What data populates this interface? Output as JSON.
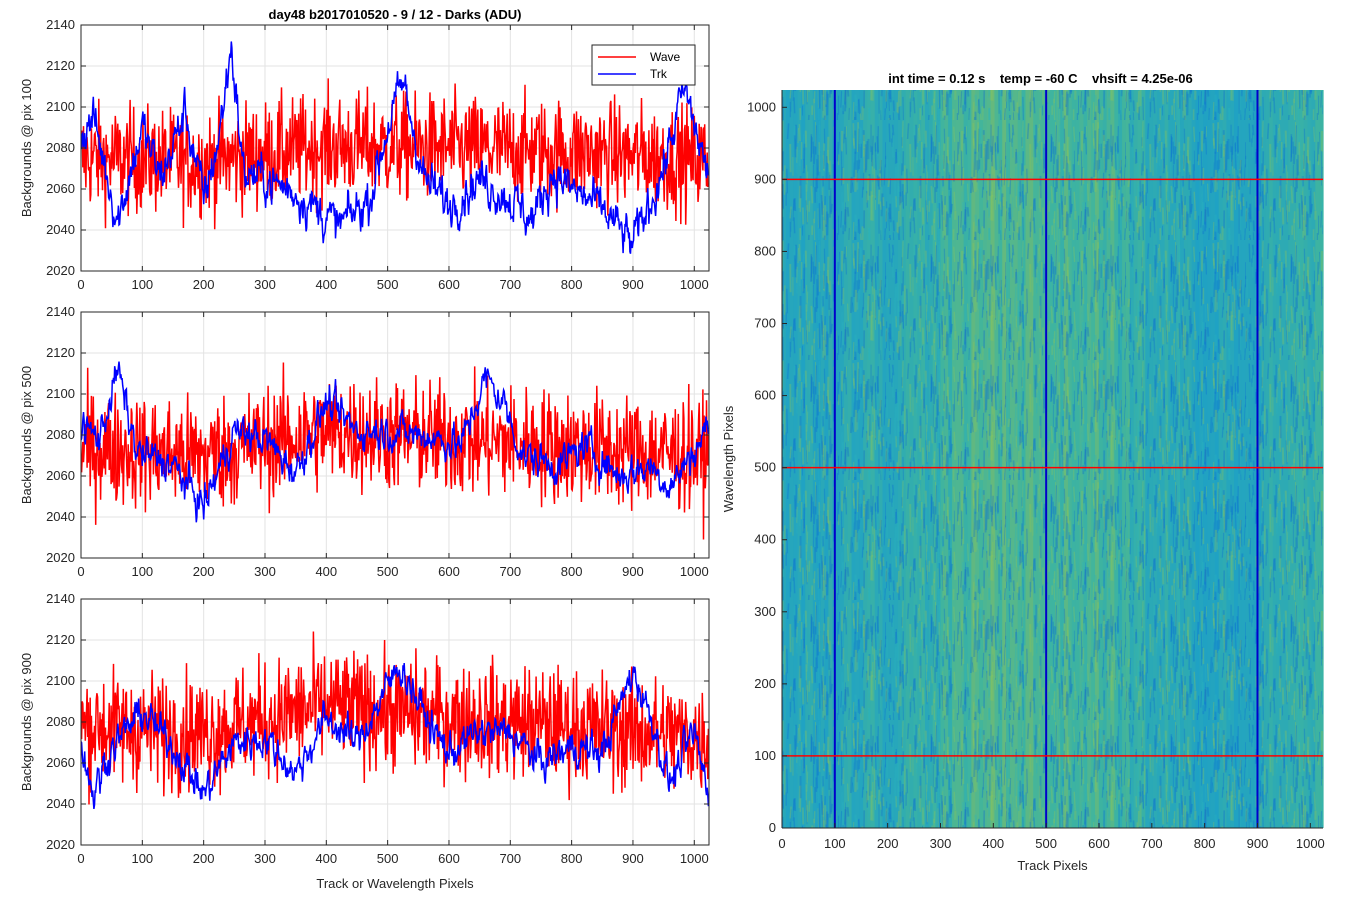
{
  "figure": {
    "title": "day48 b2017010520 - 9 / 12 - Darks (ADU)"
  },
  "chart_data": [
    {
      "type": "line",
      "ylabel": "Backgrounds @ pix 100",
      "xlabel": "",
      "xlim": [
        0,
        1024
      ],
      "ylim": [
        2020,
        2140
      ],
      "xticks": [
        0,
        100,
        200,
        300,
        400,
        500,
        600,
        700,
        800,
        900,
        1000
      ],
      "yticks": [
        2020,
        2040,
        2060,
        2080,
        2100,
        2120,
        2140
      ],
      "grid": true,
      "legend": {
        "placement": "top-right",
        "entries": [
          "Wave",
          "Trk"
        ]
      },
      "series": [
        {
          "name": "Wave",
          "color": "#ff0000",
          "mean": 2078,
          "noise": 13,
          "min": 2022,
          "max": 2137,
          "x_count": 1024,
          "anchors": [
            [
              0,
              2075
            ],
            [
              200,
              2073
            ],
            [
              400,
              2081
            ],
            [
              600,
              2080
            ],
            [
              800,
              2078
            ],
            [
              1023,
              2074
            ]
          ]
        },
        {
          "name": "Trk",
          "color": "#0000ff",
          "mean": 2072,
          "noise": 5,
          "min": 2023,
          "max": 2135,
          "x_count": 1024,
          "anchors": [
            [
              0,
              2085
            ],
            [
              20,
              2095
            ],
            [
              60,
              2045
            ],
            [
              100,
              2090
            ],
            [
              130,
              2065
            ],
            [
              170,
              2098
            ],
            [
              200,
              2055
            ],
            [
              225,
              2085
            ],
            [
              245,
              2130
            ],
            [
              265,
              2068
            ],
            [
              300,
              2065
            ],
            [
              350,
              2058
            ],
            [
              420,
              2042
            ],
            [
              470,
              2055
            ],
            [
              500,
              2090
            ],
            [
              525,
              2112
            ],
            [
              560,
              2065
            ],
            [
              600,
              2052
            ],
            [
              650,
              2065
            ],
            [
              700,
              2055
            ],
            [
              735,
              2045
            ],
            [
              770,
              2068
            ],
            [
              800,
              2060
            ],
            [
              850,
              2050
            ],
            [
              900,
              2033
            ],
            [
              950,
              2070
            ],
            [
              975,
              2100
            ],
            [
              985,
              2108
            ],
            [
              1010,
              2080
            ],
            [
              1023,
              2066
            ]
          ]
        }
      ]
    },
    {
      "type": "line",
      "ylabel": "Backgrounds @ pix 500",
      "xlabel": "",
      "xlim": [
        0,
        1024
      ],
      "ylim": [
        2020,
        2140
      ],
      "xticks": [
        0,
        100,
        200,
        300,
        400,
        500,
        600,
        700,
        800,
        900,
        1000
      ],
      "yticks": [
        2020,
        2040,
        2060,
        2080,
        2100,
        2120,
        2140
      ],
      "grid": true,
      "series": [
        {
          "name": "Wave",
          "color": "#ff0000",
          "mean": 2075,
          "noise": 14,
          "min": 2029,
          "max": 2128,
          "x_count": 1024,
          "anchors": [
            [
              0,
              2074
            ],
            [
              200,
              2070
            ],
            [
              400,
              2082
            ],
            [
              600,
              2078
            ],
            [
              800,
              2074
            ],
            [
              1023,
              2070
            ]
          ]
        },
        {
          "name": "Trk",
          "color": "#0000ff",
          "mean": 2073,
          "noise": 4,
          "min": 2036,
          "max": 2124,
          "x_count": 1024,
          "anchors": [
            [
              0,
              2085
            ],
            [
              30,
              2078
            ],
            [
              60,
              2112
            ],
            [
              90,
              2072
            ],
            [
              150,
              2065
            ],
            [
              200,
              2045
            ],
            [
              250,
              2082
            ],
            [
              300,
              2078
            ],
            [
              350,
              2062
            ],
            [
              400,
              2096
            ],
            [
              450,
              2082
            ],
            [
              500,
              2082
            ],
            [
              560,
              2080
            ],
            [
              620,
              2075
            ],
            [
              660,
              2108
            ],
            [
              690,
              2095
            ],
            [
              720,
              2070
            ],
            [
              780,
              2065
            ],
            [
              820,
              2075
            ],
            [
              880,
              2060
            ],
            [
              930,
              2065
            ],
            [
              960,
              2055
            ],
            [
              1000,
              2072
            ],
            [
              1023,
              2085
            ]
          ]
        }
      ]
    },
    {
      "type": "line",
      "ylabel": "Backgrounds @ pix 900",
      "xlabel": "Track or Wavelength Pixels",
      "xlim": [
        0,
        1024
      ],
      "ylim": [
        2020,
        2140
      ],
      "xticks": [
        0,
        100,
        200,
        300,
        400,
        500,
        600,
        700,
        800,
        900,
        1000
      ],
      "yticks": [
        2020,
        2040,
        2060,
        2080,
        2100,
        2120,
        2140
      ],
      "grid": true,
      "series": [
        {
          "name": "Wave",
          "color": "#ff0000",
          "mean": 2080,
          "noise": 14,
          "min": 2023,
          "max": 2130,
          "x_count": 1024,
          "anchors": [
            [
              0,
              2078
            ],
            [
              200,
              2075
            ],
            [
              400,
              2088
            ],
            [
              600,
              2082
            ],
            [
              800,
              2078
            ],
            [
              1023,
              2072
            ]
          ]
        },
        {
          "name": "Trk",
          "color": "#0000ff",
          "mean": 2070,
          "noise": 4,
          "min": 2020,
          "max": 2116,
          "x_count": 1024,
          "anchors": [
            [
              0,
              2070
            ],
            [
              20,
              2045
            ],
            [
              50,
              2068
            ],
            [
              100,
              2085
            ],
            [
              150,
              2068
            ],
            [
              200,
              2045
            ],
            [
              250,
              2070
            ],
            [
              300,
              2072
            ],
            [
              350,
              2055
            ],
            [
              400,
              2082
            ],
            [
              450,
              2070
            ],
            [
              520,
              2108
            ],
            [
              570,
              2078
            ],
            [
              600,
              2065
            ],
            [
              650,
              2075
            ],
            [
              700,
              2075
            ],
            [
              750,
              2060
            ],
            [
              800,
              2068
            ],
            [
              850,
              2065
            ],
            [
              900,
              2105
            ],
            [
              930,
              2082
            ],
            [
              960,
              2050
            ],
            [
              1000,
              2075
            ],
            [
              1023,
              2045
            ]
          ]
        }
      ]
    },
    {
      "type": "heatmap",
      "title": "int time = 0.12 s    temp = -60 C    vhsift = 4.25e-06",
      "xlabel": "Track Pixels",
      "ylabel": "Wavelength Pixels",
      "xlim": [
        0,
        1024
      ],
      "ylim": [
        0,
        1024
      ],
      "xticks": [
        0,
        100,
        200,
        300,
        400,
        500,
        600,
        700,
        800,
        900,
        1000
      ],
      "yticks": [
        0,
        100,
        200,
        300,
        400,
        500,
        600,
        700,
        800,
        900,
        1000
      ],
      "colormap": "parula",
      "grid": false,
      "marker_lines": {
        "vertical_x": [
          100,
          500,
          900
        ],
        "vertical_color": "#0000cc",
        "horizontal_y": [
          100,
          500,
          900
        ],
        "horizontal_color": "#ff0000"
      }
    }
  ]
}
